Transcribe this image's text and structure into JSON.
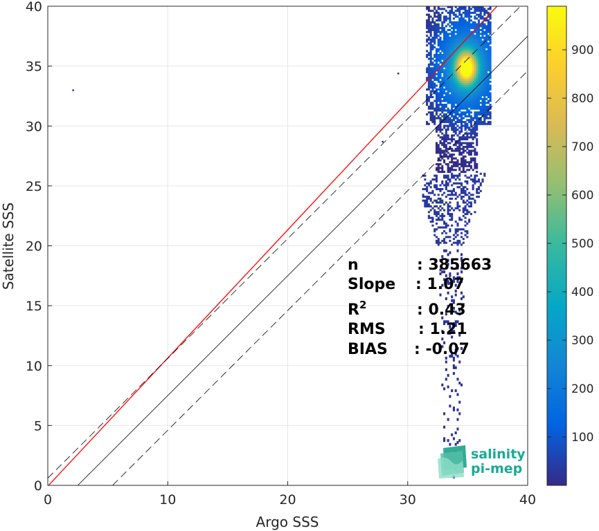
{
  "chart_data": {
    "type": "heatmap",
    "subtype": "2d-histogram-scatter",
    "xlabel": "Argo SSS",
    "ylabel": "Satellite SSS",
    "xlim": [
      0,
      40
    ],
    "ylim": [
      0,
      40
    ],
    "xticks": [
      "0",
      "10",
      "20",
      "30",
      "40"
    ],
    "yticks": [
      "0",
      "5",
      "10",
      "15",
      "20",
      "25",
      "30",
      "35",
      "40"
    ],
    "grid": true,
    "colormap": "parula",
    "colorbar": {
      "range": [
        0,
        990
      ],
      "ticks": [
        "100",
        "200",
        "300",
        "400",
        "500",
        "600",
        "700",
        "800",
        "900"
      ]
    },
    "lines": [
      {
        "role": "regression",
        "color": "#ff0000",
        "style": "solid",
        "slope": 1.07,
        "intercept": -0.07,
        "x_range": [
          0,
          40
        ]
      },
      {
        "role": "one-to-one",
        "color": "#000000",
        "style": "solid",
        "slope": 1.0,
        "intercept": -2.5,
        "x_range": [
          2.5,
          40
        ]
      },
      {
        "role": "upper-bound",
        "color": "#000000",
        "style": "dashed",
        "slope": 1.0,
        "intercept": 0.6,
        "x_range": [
          0,
          40
        ]
      },
      {
        "role": "lower-bound",
        "color": "#000000",
        "style": "dashed",
        "slope": 1.0,
        "intercept": -5.4,
        "x_range": [
          5.4,
          40
        ]
      }
    ],
    "density_cluster": {
      "core_center": [
        34.8,
        34.8
      ],
      "x_span": [
        31.5,
        36.9
      ],
      "y_span": [
        24,
        40
      ],
      "tail": {
        "x": [
          32.5,
          34.5
        ],
        "y": [
          0.5,
          24
        ]
      }
    },
    "outliers": [
      [
        2.1,
        33.0
      ],
      [
        27.9,
        28.7
      ],
      [
        29.2,
        34.4
      ]
    ],
    "stats": [
      {
        "label": "n",
        "value": ": 385663"
      },
      {
        "label": "Slope",
        "value": ": 1.07"
      },
      {
        "label": "R",
        "sup": "2",
        "value": ": 0.43"
      },
      {
        "label": "RMS",
        "value": ": 1.21"
      },
      {
        "label": "BIAS",
        "value": ": -0.07"
      }
    ]
  },
  "logo": {
    "line1": "salinity",
    "line2": "pi-mep"
  },
  "colors": {
    "regression": "#ff0000",
    "axis": "#262626",
    "grid": "#e6e6e6",
    "logo": "#1aaa92"
  }
}
